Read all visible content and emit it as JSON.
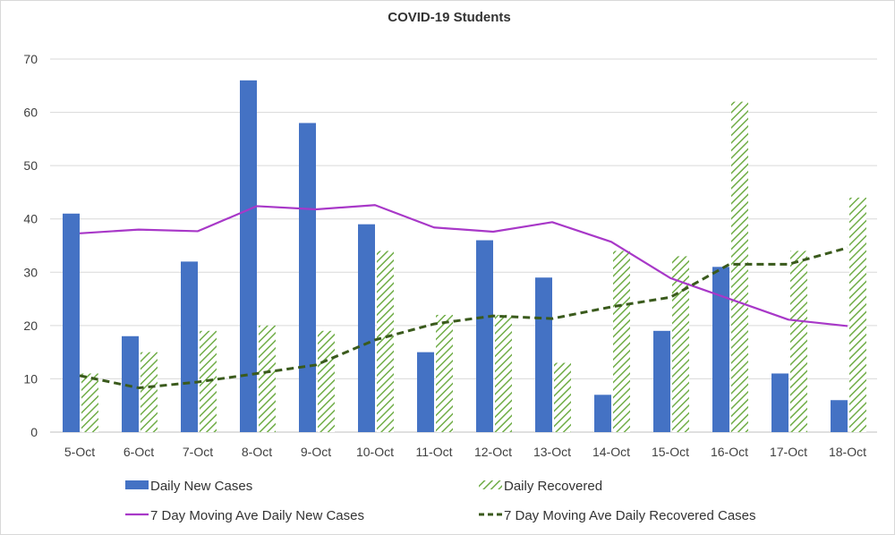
{
  "chart_data": {
    "type": "bar",
    "title": "COVID-19 Students",
    "xlabel": "",
    "ylabel": "",
    "ylim": [
      0,
      70
    ],
    "yticks": [
      0,
      10,
      20,
      30,
      40,
      50,
      60,
      70
    ],
    "grid": true,
    "legend_position": "bottom",
    "categories": [
      "5-Oct",
      "6-Oct",
      "7-Oct",
      "8-Oct",
      "9-Oct",
      "10-Oct",
      "11-Oct",
      "12-Oct",
      "13-Oct",
      "14-Oct",
      "15-Oct",
      "16-Oct",
      "17-Oct",
      "18-Oct"
    ],
    "series": [
      {
        "name": "Daily New Cases",
        "kind": "bar",
        "color": "#4472c4",
        "values": [
          41,
          18,
          32,
          66,
          58,
          39,
          15,
          36,
          29,
          7,
          19,
          31,
          11,
          6
        ]
      },
      {
        "name": "Daily Recovered",
        "kind": "bar",
        "pattern": "diagonal-hatch",
        "color": "#70ad47",
        "values": [
          11,
          15,
          19,
          20,
          19,
          34,
          22,
          22,
          13,
          34,
          33,
          62,
          34,
          44
        ]
      },
      {
        "name": "7 Day Moving Ave Daily New Cases",
        "kind": "line",
        "color": "#a838c8",
        "values": [
          37.3,
          38.0,
          37.7,
          42.4,
          41.8,
          42.6,
          38.4,
          37.6,
          39.4,
          35.7,
          28.9,
          25.0,
          21.1,
          19.9
        ]
      },
      {
        "name": "7 Day Moving  Ave Daily Recovered Cases",
        "kind": "line",
        "style": "dashed",
        "color": "#3a5a1c",
        "values": [
          10.6,
          8.3,
          9.4,
          11.0,
          12.6,
          17.3,
          20.3,
          21.8,
          21.3,
          23.5,
          25.3,
          31.5,
          31.5,
          34.6
        ]
      }
    ]
  }
}
